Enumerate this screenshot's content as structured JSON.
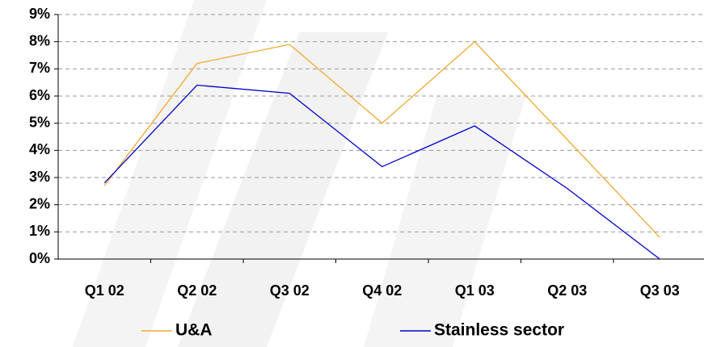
{
  "chart_data": {
    "type": "line",
    "categories": [
      "Q1 02",
      "Q2 02",
      "Q3 02",
      "Q4 02",
      "Q1 03",
      "Q2 03",
      "Q3 03"
    ],
    "series": [
      {
        "name": "U&A",
        "color": "#f0a830",
        "values": [
          2.7,
          7.2,
          7.9,
          5.0,
          8.0,
          4.4,
          0.8
        ]
      },
      {
        "name": "Stainless sector",
        "color": "#0000cc",
        "values": [
          2.8,
          6.4,
          6.1,
          3.4,
          4.9,
          2.6,
          0.0
        ]
      }
    ],
    "ylim": [
      0,
      9
    ],
    "yticks": [
      {
        "value": 0,
        "label": "0%"
      },
      {
        "value": 1,
        "label": "1%"
      },
      {
        "value": 2,
        "label": "2%"
      },
      {
        "value": 3,
        "label": "3%"
      },
      {
        "value": 4,
        "label": "4%"
      },
      {
        "value": 5,
        "label": "5%"
      },
      {
        "value": 6,
        "label": "6%"
      },
      {
        "value": 7,
        "label": "7%"
      },
      {
        "value": 8,
        "label": "8%"
      },
      {
        "value": 9,
        "label": "9%"
      }
    ],
    "grid": true,
    "legend": "bottom"
  }
}
